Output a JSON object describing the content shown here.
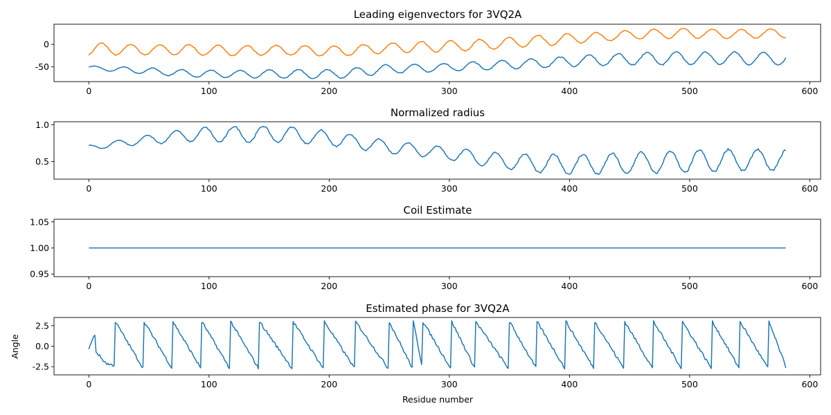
{
  "colors": {
    "series_blue": "#1f77b4",
    "series_orange": "#ff7f0e"
  },
  "chart_data": [
    {
      "type": "line",
      "title": "Leading eigenvectors for 3VQ2A",
      "xlabel": "",
      "ylabel": "",
      "xlim": [
        -29,
        609
      ],
      "ylim": [
        -83,
        45
      ],
      "xticks": [
        0,
        100,
        200,
        300,
        400,
        500,
        600
      ],
      "yticks": [
        0,
        -50
      ],
      "grid": false,
      "x_points": 581,
      "series": [
        {
          "color": "#ff7f0e",
          "generator": "sine",
          "period": 24.2,
          "phase": -1.2,
          "amplitude": [
            14,
            11,
            12,
            11,
            11,
            11,
            12,
            12,
            12,
            10,
            11,
            10,
            10
          ],
          "center": [
            -10,
            -12,
            -12,
            -14,
            -13,
            -15,
            -8,
            -5,
            0,
            8,
            15,
            22,
            25,
            23,
            25
          ]
        },
        {
          "color": "#1f77b4",
          "generator": "sine",
          "period": 24.2,
          "phase": 0.3,
          "amplitude": [
            4,
            7,
            8,
            9,
            10,
            10,
            9,
            10,
            11,
            13,
            14,
            14,
            14
          ],
          "center": [
            -52,
            -58,
            -65,
            -66,
            -66,
            -66,
            -55,
            -52,
            -47,
            -42,
            -36,
            -32,
            -31,
            -31,
            -32
          ]
        }
      ]
    },
    {
      "type": "line",
      "title": "Normalized radius",
      "xlabel": "",
      "ylabel": "",
      "xlim": [
        -29,
        609
      ],
      "ylim": [
        0.26,
        1.04
      ],
      "xticks": [
        0,
        100,
        200,
        300,
        400,
        500,
        600
      ],
      "yticks": [
        1.0,
        0.5
      ],
      "grid": false,
      "x_points": 581,
      "series": [
        {
          "color": "#1f77b4",
          "generator": "sine",
          "period": 24.2,
          "phase": 1.6,
          "amplitude": [
            0.03,
            0.06,
            0.1,
            0.11,
            0.1,
            0.09,
            0.08,
            0.1,
            0.13,
            0.14,
            0.15,
            0.15,
            0.14
          ],
          "center": [
            0.69,
            0.78,
            0.86,
            0.87,
            0.87,
            0.8,
            0.7,
            0.63,
            0.53,
            0.47,
            0.46,
            0.48,
            0.5,
            0.52,
            0.52
          ]
        }
      ]
    },
    {
      "type": "line",
      "title": "Coil Estimate",
      "xlabel": "",
      "ylabel": "",
      "xlim": [
        -29,
        609
      ],
      "ylim": [
        0.945,
        1.055
      ],
      "xticks": [
        0,
        100,
        200,
        300,
        400,
        500,
        600
      ],
      "yticks": [
        1.05,
        1.0,
        0.95
      ],
      "grid": false,
      "x": [
        0,
        580
      ],
      "series": [
        {
          "color": "#1f77b4",
          "values": [
            1.0,
            1.0
          ]
        }
      ]
    },
    {
      "type": "line",
      "title": "Estimated phase for 3VQ2A",
      "xlabel": "Residue number",
      "ylabel": "Angle",
      "xlim": [
        -29,
        609
      ],
      "ylim": [
        -3.5,
        3.5
      ],
      "xticks": [
        0,
        100,
        200,
        300,
        400,
        500,
        600
      ],
      "yticks": [
        2.5,
        0.0,
        -2.5
      ],
      "grid": false,
      "x_points": 581,
      "series": [
        {
          "color": "#1f77b4",
          "generator": "wrapped-sawtooth",
          "jumps": [
            22,
            46,
            70,
            94,
            118,
            142,
            170,
            196,
            222,
            250,
            270,
            278,
            302,
            322,
            350,
            373,
            397,
            421,
            446,
            470,
            494,
            519,
            542,
            566
          ],
          "start": -0.3,
          "first_jump_at": 22
        }
      ]
    }
  ]
}
